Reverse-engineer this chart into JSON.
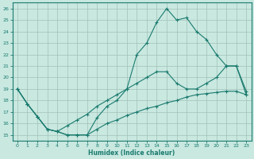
{
  "xlabel": "Humidex (Indice chaleur)",
  "bg_color": "#c8e8e0",
  "line_color": "#1a7a6e",
  "grid_color": "#a0c0b8",
  "xlim": [
    -0.5,
    23.5
  ],
  "ylim": [
    14.5,
    26.5
  ],
  "xticks": [
    0,
    1,
    2,
    3,
    4,
    5,
    6,
    7,
    8,
    9,
    10,
    11,
    12,
    13,
    14,
    15,
    16,
    17,
    18,
    19,
    20,
    21,
    22,
    23
  ],
  "yticks": [
    15,
    16,
    17,
    18,
    19,
    20,
    21,
    22,
    23,
    24,
    25,
    26
  ],
  "line1_x": [
    0,
    1,
    2,
    3,
    4,
    5,
    6,
    7,
    8,
    9,
    10,
    11,
    12,
    13,
    14,
    15,
    16,
    17,
    18,
    19,
    20,
    21,
    22,
    23
  ],
  "line1_y": [
    19.0,
    17.7,
    16.6,
    15.5,
    15.3,
    15.0,
    15.0,
    15.0,
    16.5,
    17.5,
    18.0,
    19.0,
    22.0,
    23.0,
    24.8,
    26.0,
    25.0,
    25.2,
    24.0,
    23.3,
    22.0,
    21.0,
    21.0,
    18.5
  ],
  "line2_x": [
    0,
    1,
    2,
    3,
    4,
    5,
    6,
    7,
    8,
    9,
    10,
    11,
    12,
    13,
    14,
    15,
    16,
    17,
    18,
    19,
    20,
    21,
    22,
    23
  ],
  "line2_y": [
    19.0,
    17.7,
    16.6,
    15.5,
    15.3,
    15.8,
    16.3,
    16.8,
    17.5,
    18.0,
    18.5,
    19.0,
    19.5,
    20.0,
    20.5,
    20.5,
    19.5,
    19.0,
    19.0,
    19.5,
    20.0,
    21.0,
    21.0,
    18.8
  ],
  "line3_x": [
    0,
    1,
    2,
    3,
    4,
    5,
    6,
    7,
    8,
    9,
    10,
    11,
    12,
    13,
    14,
    15,
    16,
    17,
    18,
    19,
    20,
    21,
    22,
    23
  ],
  "line3_y": [
    19.0,
    17.7,
    16.6,
    15.5,
    15.3,
    15.0,
    15.0,
    15.0,
    15.5,
    16.0,
    16.3,
    16.7,
    17.0,
    17.3,
    17.5,
    17.8,
    18.0,
    18.3,
    18.5,
    18.6,
    18.7,
    18.8,
    18.8,
    18.5
  ]
}
